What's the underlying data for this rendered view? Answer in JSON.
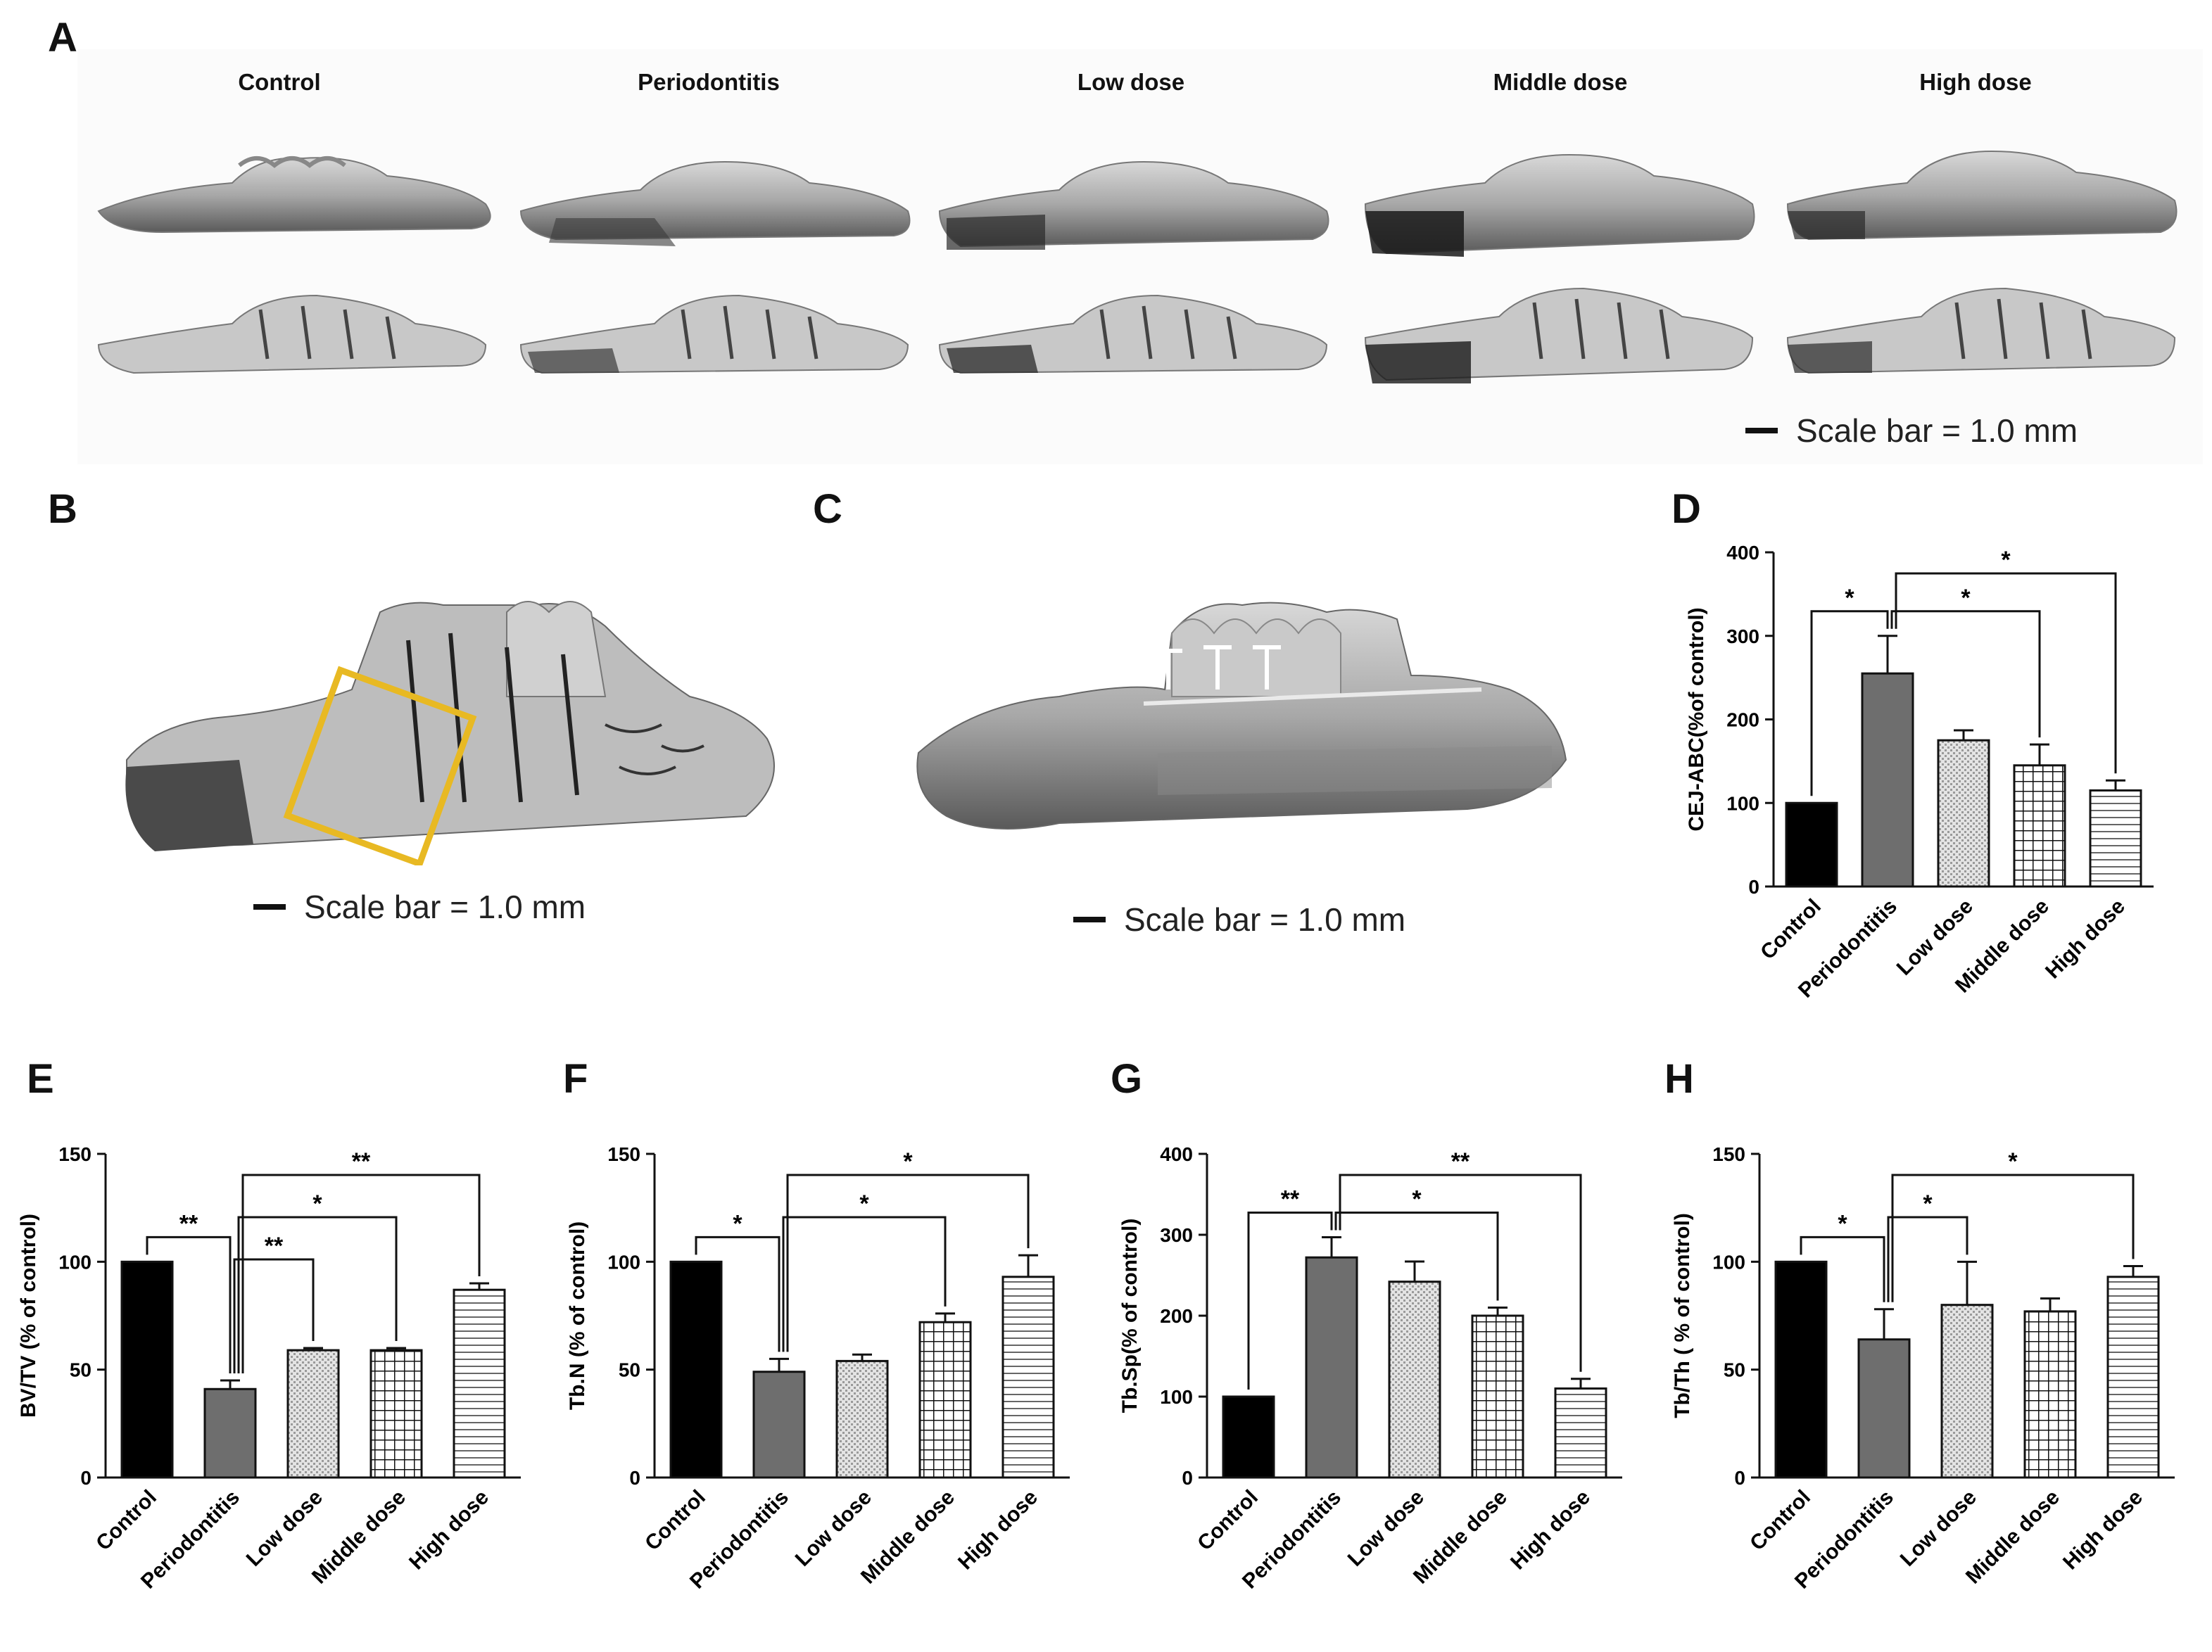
{
  "panels": {
    "A": "A",
    "B": "B",
    "C": "C",
    "D": "D",
    "E": "E",
    "F": "F",
    "G": "G",
    "H": "H"
  },
  "groups": [
    "Control",
    "Periodontitis",
    "Low dose",
    "Middle dose",
    "High dose"
  ],
  "scale_bar_text": "Scale bar = 1.0 mm",
  "colors": {
    "control": "#000000",
    "periodontitis": "#6e6e6e",
    "box": "#e8b923",
    "bone": "#b8b8b8"
  },
  "chart_data": [
    {
      "id": "D",
      "type": "bar",
      "ylabel": "CEJ-ABC(%of control)",
      "categories": [
        "Control",
        "Periodontitis",
        "Low dose",
        "Middle dose",
        "High dose"
      ],
      "values": [
        100,
        255,
        175,
        145,
        115
      ],
      "errors": [
        0,
        45,
        12,
        25,
        12
      ],
      "ylim": [
        0,
        400
      ],
      "yticks": [
        0,
        100,
        200,
        300,
        400
      ],
      "significance": [
        {
          "from": 0,
          "to": 1,
          "label": "*"
        },
        {
          "from": 1,
          "to": 3,
          "label": "*"
        },
        {
          "from": 1,
          "to": 4,
          "label": "*"
        }
      ]
    },
    {
      "id": "E",
      "type": "bar",
      "ylabel": "BV/TV (%  of control)",
      "categories": [
        "Control",
        "Periodontitis",
        "Low  dose",
        "Middle dose",
        "High dose"
      ],
      "values": [
        100,
        41,
        59,
        59,
        87
      ],
      "errors": [
        0,
        4,
        1,
        1,
        3
      ],
      "ylim": [
        0,
        150
      ],
      "yticks": [
        0,
        50,
        100,
        150
      ],
      "significance": [
        {
          "from": 0,
          "to": 1,
          "label": "**"
        },
        {
          "from": 1,
          "to": 2,
          "label": "**"
        },
        {
          "from": 1,
          "to": 3,
          "label": "*"
        },
        {
          "from": 1,
          "to": 4,
          "label": "**"
        }
      ]
    },
    {
      "id": "F",
      "type": "bar",
      "ylabel": "Tb.N (% of control)",
      "categories": [
        "Control",
        "Periodontitis",
        "Low dose",
        "Middle dose",
        "High dose"
      ],
      "values": [
        100,
        49,
        54,
        72,
        93
      ],
      "errors": [
        0,
        6,
        3,
        4,
        10
      ],
      "ylim": [
        0,
        150
      ],
      "yticks": [
        0,
        50,
        100,
        150
      ],
      "significance": [
        {
          "from": 0,
          "to": 1,
          "label": "*"
        },
        {
          "from": 1,
          "to": 3,
          "label": "*"
        },
        {
          "from": 1,
          "to": 4,
          "label": "*"
        }
      ]
    },
    {
      "id": "G",
      "type": "bar",
      "ylabel": "Tb.Sp(% of control)",
      "categories": [
        "Control",
        "Periodontitis",
        "Low dose",
        "Middle dose",
        "High dose"
      ],
      "values": [
        100,
        272,
        242,
        200,
        110
      ],
      "errors": [
        0,
        25,
        25,
        10,
        12
      ],
      "ylim": [
        0,
        400
      ],
      "yticks": [
        0,
        100,
        200,
        300,
        400
      ],
      "significance": [
        {
          "from": 0,
          "to": 1,
          "label": "**"
        },
        {
          "from": 1,
          "to": 3,
          "label": "*"
        },
        {
          "from": 1,
          "to": 4,
          "label": "**"
        }
      ]
    },
    {
      "id": "H",
      "type": "bar",
      "ylabel": "Tb/Th ( % of control)",
      "categories": [
        "Control",
        "Periodontitis",
        "Low dose",
        "Middle dose",
        "High dose"
      ],
      "values": [
        100,
        64,
        80,
        77,
        93
      ],
      "errors": [
        0,
        14,
        20,
        6,
        5
      ],
      "ylim": [
        0,
        150
      ],
      "yticks": [
        0,
        50,
        100,
        150
      ],
      "significance": [
        {
          "from": 0,
          "to": 1,
          "label": "*"
        },
        {
          "from": 1,
          "to": 2,
          "label": "*"
        },
        {
          "from": 1,
          "to": 4,
          "label": "*"
        }
      ]
    }
  ]
}
